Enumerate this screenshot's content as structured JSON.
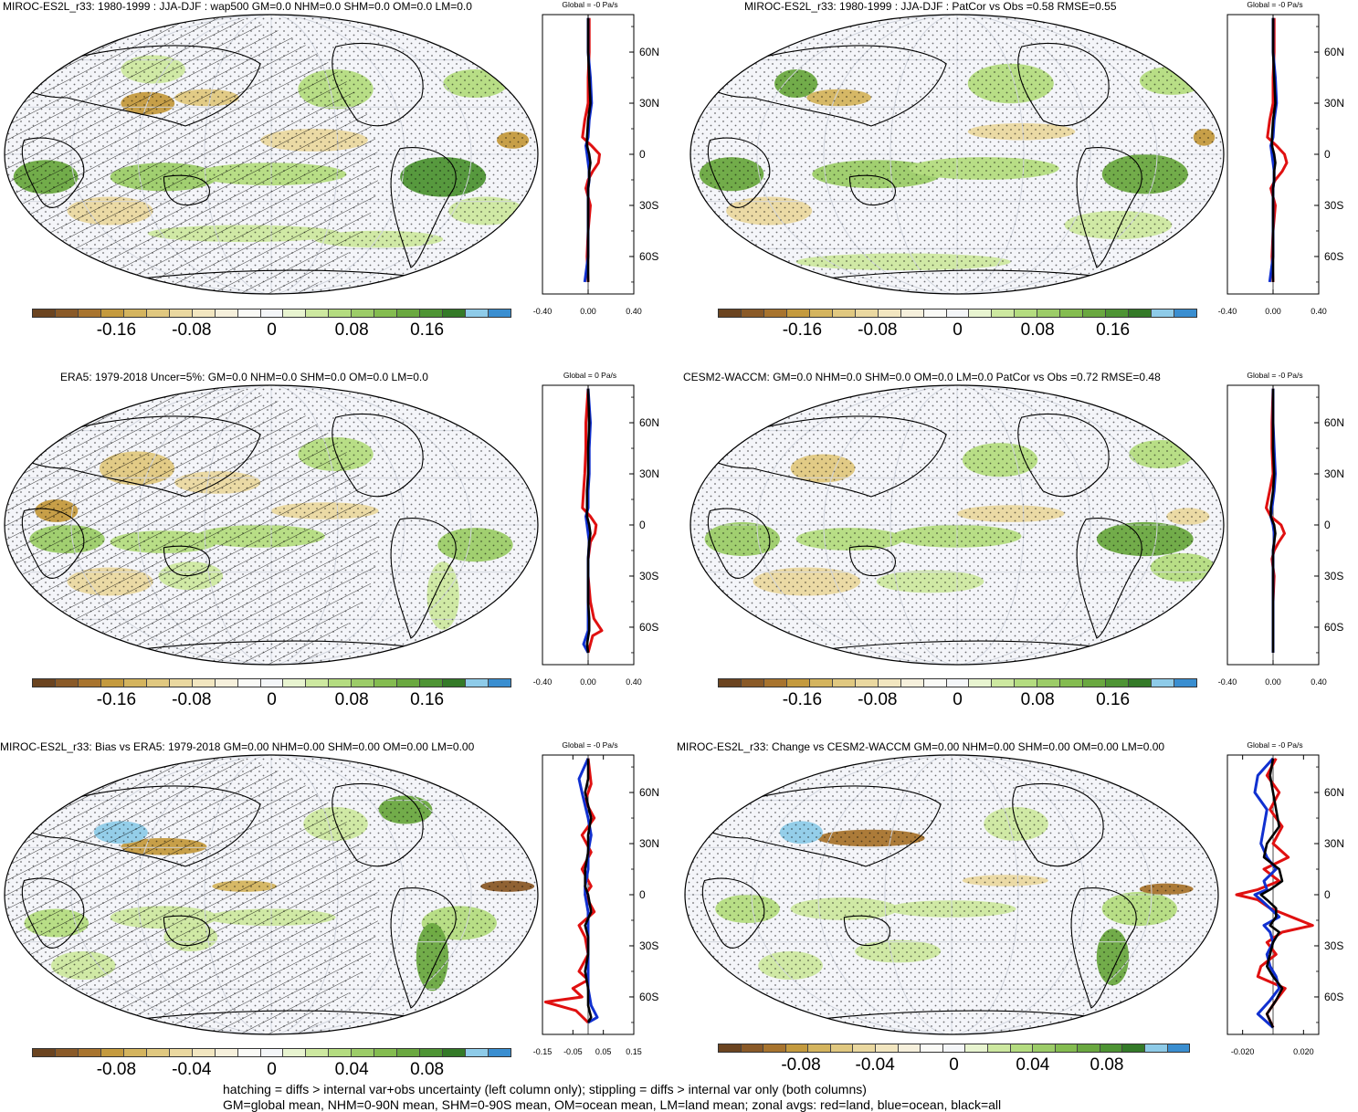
{
  "palette": [
    "#6b4420",
    "#8a5a28",
    "#a8742e",
    "#c49a3e",
    "#d4b45e",
    "#e0c880",
    "#ead8a0",
    "#f2e6c0",
    "#f6f0dc",
    "#fafaf6",
    "#f4f6f8",
    "#e8f4d0",
    "#cde8a0",
    "#b4dc80",
    "#9ccc68",
    "#84bc50",
    "#6aa840",
    "#4e9434",
    "#347a28",
    "#8ecbe8",
    "#3a8ed0"
  ],
  "footer": {
    "line1": "hatching = diffs > internal var+obs uncertainty (left column only); stippling = diffs > internal var only (both columns)",
    "line2": "GM=global mean, NHM=0-90N mean, SHM=0-90S mean, OM=ocean mean, LM=land mean; zonal avgs: red=land, blue=ocean, black=all"
  },
  "panels": [
    {
      "title": "MIROC-ES2L_r33: 1980-1999 : JJA-DJF : wap500 GM=0.0 NHM=0.0 SHM=0.0 OM=0.0 LM=0.0",
      "cbar_ticks": [
        "-0.16",
        "-0.08",
        "0",
        "0.08",
        "0.16"
      ],
      "chart_data": {
        "type": "line",
        "title": "Global = -0 Pa/s",
        "xlim": [
          -0.4,
          0.4
        ],
        "x_ticks": [
          "-0.40",
          "0.00",
          "0.40"
        ],
        "y_ticks": [
          "60N",
          "30N",
          "0",
          "30S",
          "60S"
        ],
        "series": [
          {
            "color": "#e01010",
            "lat": [
              80,
              60,
              45,
              30,
              20,
              10,
              5,
              0,
              -5,
              -10,
              -15,
              -20,
              -30,
              -45,
              -60,
              -75
            ],
            "values": [
              0.01,
              0.01,
              0.0,
              0.0,
              -0.03,
              -0.05,
              0.03,
              0.1,
              0.09,
              0.04,
              0.0,
              -0.02,
              0.02,
              0.0,
              -0.01,
              0.0
            ]
          },
          {
            "color": "#1030d0",
            "lat": [
              80,
              60,
              45,
              30,
              20,
              10,
              5,
              0,
              -5,
              -10,
              -15,
              -20,
              -30,
              -45,
              -60,
              -75
            ],
            "values": [
              0.0,
              0.0,
              0.02,
              0.03,
              0.01,
              0.0,
              -0.02,
              -0.01,
              0.0,
              0.01,
              0.01,
              0.0,
              0.0,
              0.0,
              0.0,
              -0.03
            ]
          },
          {
            "color": "#000000",
            "lat": [
              80,
              60,
              45,
              30,
              20,
              10,
              5,
              0,
              -5,
              -10,
              -15,
              -20,
              -30,
              -45,
              -60,
              -75
            ],
            "values": [
              0.0,
              0.0,
              0.01,
              0.02,
              0.0,
              -0.01,
              -0.01,
              0.01,
              0.02,
              0.01,
              0.01,
              0.0,
              0.0,
              0.0,
              0.0,
              0.0
            ]
          }
        ]
      }
    },
    {
      "title": "MIROC-ES2L_r33: 1980-1999 : JJA-DJF : PatCor vs Obs =0.58 RMSE=0.55",
      "cbar_ticks": [
        "-0.16",
        "-0.08",
        "0",
        "0.08",
        "0.16"
      ],
      "chart_data": {
        "type": "line",
        "title": "Global = -0 Pa/s",
        "xlim": [
          -0.4,
          0.4
        ],
        "x_ticks": [
          "-0.40",
          "0.00",
          "0.40"
        ],
        "y_ticks": [
          "60N",
          "30N",
          "0",
          "30S",
          "60S"
        ],
        "series": [
          {
            "color": "#e01010",
            "lat": [
              80,
              60,
              45,
              30,
              20,
              10,
              5,
              0,
              -5,
              -10,
              -15,
              -20,
              -30,
              -45,
              -60,
              -75
            ],
            "values": [
              0.01,
              0.01,
              0.0,
              0.0,
              -0.03,
              -0.05,
              0.03,
              0.1,
              0.12,
              0.08,
              0.02,
              -0.02,
              0.02,
              0.0,
              -0.01,
              0.0
            ]
          },
          {
            "color": "#1030d0",
            "lat": [
              80,
              60,
              45,
              30,
              20,
              10,
              5,
              0,
              -5,
              -10,
              -15,
              -20,
              -30,
              -45,
              -60,
              -75
            ],
            "values": [
              0.0,
              0.0,
              0.02,
              0.03,
              0.01,
              0.0,
              -0.02,
              -0.01,
              0.0,
              0.01,
              0.01,
              0.0,
              0.0,
              0.0,
              0.0,
              -0.03
            ]
          },
          {
            "color": "#000000",
            "lat": [
              80,
              60,
              45,
              30,
              20,
              10,
              5,
              0,
              -5,
              -10,
              -15,
              -20,
              -30,
              -45,
              -60,
              -75
            ],
            "values": [
              0.0,
              0.0,
              0.01,
              0.02,
              0.0,
              -0.01,
              -0.01,
              0.01,
              0.02,
              0.01,
              0.01,
              0.0,
              0.0,
              0.0,
              0.0,
              0.0
            ]
          }
        ]
      }
    },
    {
      "title": "ERA5: 1979-2018 Uncer=5%: GM=0.0 NHM=0.0 SHM=0.0 OM=0.0 LM=0.0",
      "cbar_ticks": [
        "-0.16",
        "-0.08",
        "0",
        "0.08",
        "0.16"
      ],
      "chart_data": {
        "type": "line",
        "title": "Global = 0 Pa/s",
        "xlim": [
          -0.4,
          0.4
        ],
        "x_ticks": [
          "-0.40",
          "0.00",
          "0.40"
        ],
        "y_ticks": [
          "60N",
          "30N",
          "0",
          "30S",
          "60S"
        ],
        "series": [
          {
            "color": "#e01010",
            "lat": [
              80,
              60,
              45,
              30,
              20,
              10,
              5,
              0,
              -5,
              -10,
              -20,
              -30,
              -45,
              -55,
              -62,
              -65,
              -75
            ],
            "values": [
              0.0,
              -0.02,
              -0.02,
              -0.03,
              -0.04,
              -0.05,
              0.02,
              0.07,
              0.06,
              0.02,
              0.0,
              0.0,
              0.02,
              0.05,
              0.12,
              0.04,
              0.0
            ]
          },
          {
            "color": "#1030d0",
            "lat": [
              80,
              60,
              45,
              30,
              20,
              10,
              5,
              0,
              -5,
              -10,
              -20,
              -30,
              -45,
              -55,
              -62,
              -70,
              -75
            ],
            "values": [
              0.0,
              0.02,
              0.01,
              0.01,
              0.0,
              0.0,
              -0.02,
              -0.01,
              0.0,
              0.01,
              0.0,
              0.0,
              0.0,
              0.0,
              0.0,
              -0.04,
              0.0
            ]
          },
          {
            "color": "#000000",
            "lat": [
              80,
              60,
              45,
              30,
              20,
              10,
              5,
              0,
              -5,
              -10,
              -20,
              -30,
              -45,
              -55,
              -62,
              -70,
              -75
            ],
            "values": [
              0.0,
              0.01,
              0.0,
              0.0,
              -0.01,
              -0.01,
              -0.01,
              0.01,
              0.02,
              0.01,
              0.0,
              0.0,
              0.0,
              0.01,
              0.01,
              -0.01,
              0.0
            ]
          }
        ]
      }
    },
    {
      "title": "CESM2-WACCM: GM=0.0 NHM=0.0 SHM=0.0 OM=0.0 LM=0.0 PatCor vs Obs =0.72 RMSE=0.48",
      "cbar_ticks": [
        "-0.16",
        "-0.08",
        "0",
        "0.08",
        "0.16"
      ],
      "chart_data": {
        "type": "line",
        "title": "Global = -0 Pa/s",
        "xlim": [
          -0.4,
          0.4
        ],
        "x_ticks": [
          "-0.40",
          "0.00",
          "0.40"
        ],
        "y_ticks": [
          "60N",
          "30N",
          "0",
          "30S",
          "60S"
        ],
        "series": [
          {
            "color": "#e01010",
            "lat": [
              80,
              60,
              45,
              30,
              20,
              10,
              5,
              0,
              -5,
              -10,
              -15,
              -20,
              -30,
              -45,
              -60,
              -75
            ],
            "values": [
              0.0,
              -0.01,
              -0.01,
              0.0,
              -0.03,
              -0.06,
              -0.02,
              0.07,
              0.1,
              0.05,
              0.01,
              -0.01,
              0.01,
              0.0,
              0.0,
              0.0
            ]
          },
          {
            "color": "#1030d0",
            "lat": [
              80,
              60,
              45,
              30,
              20,
              10,
              5,
              0,
              -5,
              -10,
              -15,
              -20,
              -30,
              -45,
              -60,
              -75
            ],
            "values": [
              0.0,
              0.0,
              0.01,
              0.02,
              0.01,
              -0.01,
              -0.02,
              0.0,
              0.01,
              0.01,
              0.0,
              0.0,
              0.0,
              0.0,
              0.0,
              0.0
            ]
          },
          {
            "color": "#000000",
            "lat": [
              80,
              60,
              45,
              30,
              20,
              10,
              5,
              0,
              -5,
              -10,
              -15,
              -20,
              -30,
              -45,
              -60,
              -75
            ],
            "values": [
              0.0,
              0.0,
              0.0,
              0.01,
              0.0,
              -0.02,
              -0.02,
              0.01,
              0.02,
              0.01,
              0.0,
              0.0,
              0.0,
              0.0,
              0.0,
              0.0
            ]
          }
        ]
      }
    },
    {
      "title": "MIROC-ES2L_r33: Bias vs ERA5: 1979-2018 GM=0.00 NHM=0.00 SHM=0.00 OM=0.00 LM=0.00",
      "cbar_ticks": [
        "-0.08",
        "-0.04",
        "0",
        "0.04",
        "0.08"
      ],
      "chart_data": {
        "type": "line",
        "title": "Global = -0 Pa/s",
        "xlim": [
          -0.15,
          0.15
        ],
        "x_ticks": [
          "-0.15",
          "-0.05",
          "0.05",
          "0.15"
        ],
        "y_ticks": [
          "60N",
          "30N",
          "0",
          "30S",
          "60S"
        ],
        "series": [
          {
            "color": "#e01010",
            "lat": [
              80,
              65,
              55,
              45,
              35,
              25,
              15,
              5,
              0,
              -10,
              -18,
              -25,
              -35,
              -45,
              -50,
              -55,
              -60,
              -63,
              -68,
              -75
            ],
            "values": [
              0.0,
              0.01,
              -0.01,
              0.02,
              -0.02,
              0.01,
              -0.02,
              0.01,
              -0.01,
              0.02,
              -0.03,
              -0.01,
              0.0,
              -0.03,
              0.0,
              -0.05,
              -0.02,
              -0.14,
              -0.04,
              0.0
            ]
          },
          {
            "color": "#1030d0",
            "lat": [
              80,
              68,
              60,
              45,
              35,
              25,
              15,
              5,
              0,
              -10,
              -18,
              -25,
              -35,
              -45,
              -55,
              -65,
              -72,
              -75
            ],
            "values": [
              0.0,
              -0.03,
              -0.02,
              0.0,
              0.01,
              0.0,
              0.0,
              -0.01,
              -0.01,
              0.0,
              0.0,
              0.0,
              0.0,
              0.0,
              0.0,
              0.01,
              0.03,
              0.0
            ]
          },
          {
            "color": "#000000",
            "lat": [
              80,
              68,
              60,
              45,
              35,
              25,
              15,
              5,
              0,
              -10,
              -18,
              -25,
              -35,
              -45,
              -55,
              -65,
              -72,
              -75
            ],
            "values": [
              0.0,
              0.0,
              -0.01,
              0.01,
              0.0,
              0.0,
              -0.01,
              -0.01,
              0.0,
              0.01,
              -0.01,
              0.0,
              0.0,
              -0.01,
              0.0,
              0.0,
              0.01,
              0.0
            ]
          }
        ]
      }
    },
    {
      "title": "MIROC-ES2L_r33: Change vs CESM2-WACCM GM=0.00 NHM=0.00 SHM=0.00 OM=0.00 LM=0.00",
      "cbar_ticks": [
        "-0.08",
        "-0.04",
        "0",
        "0.04",
        "0.08"
      ],
      "chart_data": {
        "type": "line",
        "title": "Global = -0 Pa/s",
        "xlim": [
          -0.03,
          0.03
        ],
        "x_ticks": [
          "-0.020",
          "0.020"
        ],
        "y_ticks": [
          "60N",
          "30N",
          "0",
          "30S",
          "60S"
        ],
        "series": [
          {
            "color": "#e01010",
            "lat": [
              80,
              70,
              60,
              50,
              40,
              30,
              22,
              15,
              8,
              3,
              0,
              -3,
              -8,
              -13,
              -18,
              -22,
              -28,
              -35,
              -42,
              -48,
              -55,
              -62,
              -70,
              -78
            ],
            "values": [
              0.002,
              -0.004,
              0.004,
              -0.002,
              0.006,
              0.0,
              0.01,
              -0.006,
              0.004,
              -0.01,
              -0.024,
              -0.01,
              -0.002,
              0.012,
              0.026,
              0.006,
              -0.004,
              0.002,
              -0.008,
              -0.01,
              0.008,
              0.002,
              -0.004,
              0.0
            ]
          },
          {
            "color": "#1030d0",
            "lat": [
              80,
              70,
              60,
              50,
              40,
              30,
              22,
              15,
              8,
              3,
              0,
              -3,
              -8,
              -13,
              -18,
              -22,
              -28,
              -35,
              -42,
              -48,
              -55,
              -62,
              -70,
              -78
            ],
            "values": [
              0.0,
              -0.01,
              -0.012,
              -0.004,
              -0.006,
              -0.008,
              -0.004,
              0.002,
              -0.006,
              -0.004,
              -0.012,
              -0.008,
              -0.002,
              0.004,
              -0.006,
              -0.002,
              0.0,
              -0.004,
              -0.002,
              0.002,
              0.004,
              -0.002,
              -0.01,
              0.0
            ]
          },
          {
            "color": "#000000",
            "lat": [
              80,
              70,
              60,
              50,
              40,
              30,
              22,
              15,
              8,
              3,
              0,
              -3,
              -8,
              -13,
              -18,
              -22,
              -28,
              -35,
              -42,
              -48,
              -55,
              -62,
              -70,
              -78
            ],
            "values": [
              0.0,
              -0.002,
              0.0,
              0.002,
              0.004,
              -0.004,
              -0.006,
              0.004,
              0.006,
              -0.002,
              -0.008,
              -0.004,
              0.002,
              0.002,
              -0.002,
              0.004,
              0.0,
              -0.002,
              -0.004,
              0.0,
              0.006,
              0.002,
              -0.004,
              0.0
            ]
          }
        ]
      }
    }
  ]
}
